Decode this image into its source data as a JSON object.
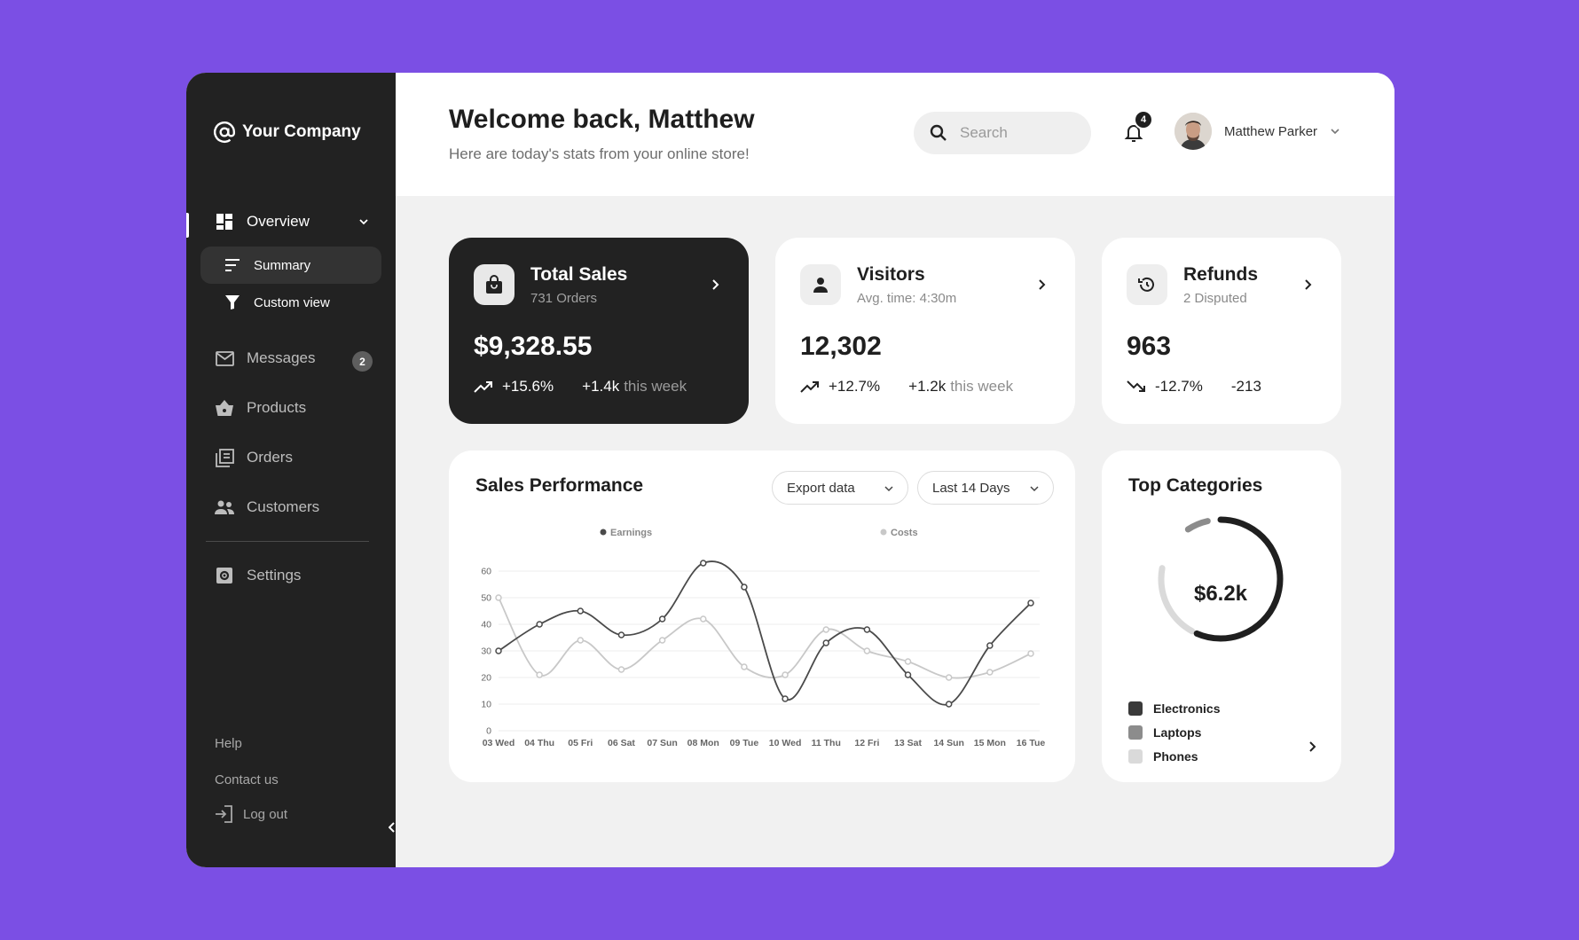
{
  "brand": {
    "name": "Your Company"
  },
  "sidebar": {
    "overview": "Overview",
    "summary": "Summary",
    "custom_view": "Custom view",
    "messages": "Messages",
    "messages_count": "2",
    "products": "Products",
    "orders": "Orders",
    "customers": "Customers",
    "settings": "Settings",
    "help": "Help",
    "contact": "Contact us",
    "logout": "Log out"
  },
  "header": {
    "welcome": "Welcome back, Matthew",
    "subtitle": "Here are today's stats from your online store!",
    "search_placeholder": "Search",
    "notifications": "4",
    "user_name": "Matthew Parker"
  },
  "stats": {
    "sales": {
      "title": "Total Sales",
      "sub": "731 Orders",
      "value": "$9,328.55",
      "pct": "+15.6%",
      "delta": "+1.4k",
      "week": "this week"
    },
    "visitors": {
      "title": "Visitors",
      "sub": "Avg. time: 4:30m",
      "value": "12,302",
      "pct": "+12.7%",
      "delta": "+1.2k",
      "week": "this week"
    },
    "refunds": {
      "title": "Refunds",
      "sub": "2 Disputed",
      "value": "963",
      "pct": "-12.7%",
      "delta": "-213"
    }
  },
  "performance": {
    "title": "Sales Performance",
    "export_label": "Export data",
    "range_label": "Last 14 Days"
  },
  "categories": {
    "title": "Top Categories",
    "total": "$6.2k",
    "items": [
      {
        "name": "Electronics",
        "color": "#3a3a3a"
      },
      {
        "name": "Laptops",
        "color": "#8c8c8c"
      },
      {
        "name": "Phones",
        "color": "#dadada"
      }
    ]
  },
  "chart_data": {
    "type": "line",
    "categories": [
      "03 Wed",
      "04 Thu",
      "05 Fri",
      "06 Sat",
      "07 Sun",
      "08 Mon",
      "09 Tue",
      "10 Wed",
      "11 Thu",
      "12 Fri",
      "13 Sat",
      "14 Sun",
      "15 Mon",
      "16 Tue"
    ],
    "series": [
      {
        "name": "Earnings",
        "color": "#4a4a4a",
        "values": [
          30,
          40,
          45,
          36,
          42,
          63,
          54,
          12,
          33,
          38,
          21,
          10,
          32,
          48
        ]
      },
      {
        "name": "Costs",
        "color": "#c8c8c8",
        "values": [
          50,
          21,
          34,
          23,
          34,
          42,
          24,
          21,
          38,
          30,
          26,
          20,
          22,
          29
        ]
      }
    ],
    "yticks": [
      0,
      10,
      20,
      30,
      40,
      50,
      60
    ],
    "ylim": [
      0,
      60
    ],
    "grid": true,
    "legend": "top"
  }
}
